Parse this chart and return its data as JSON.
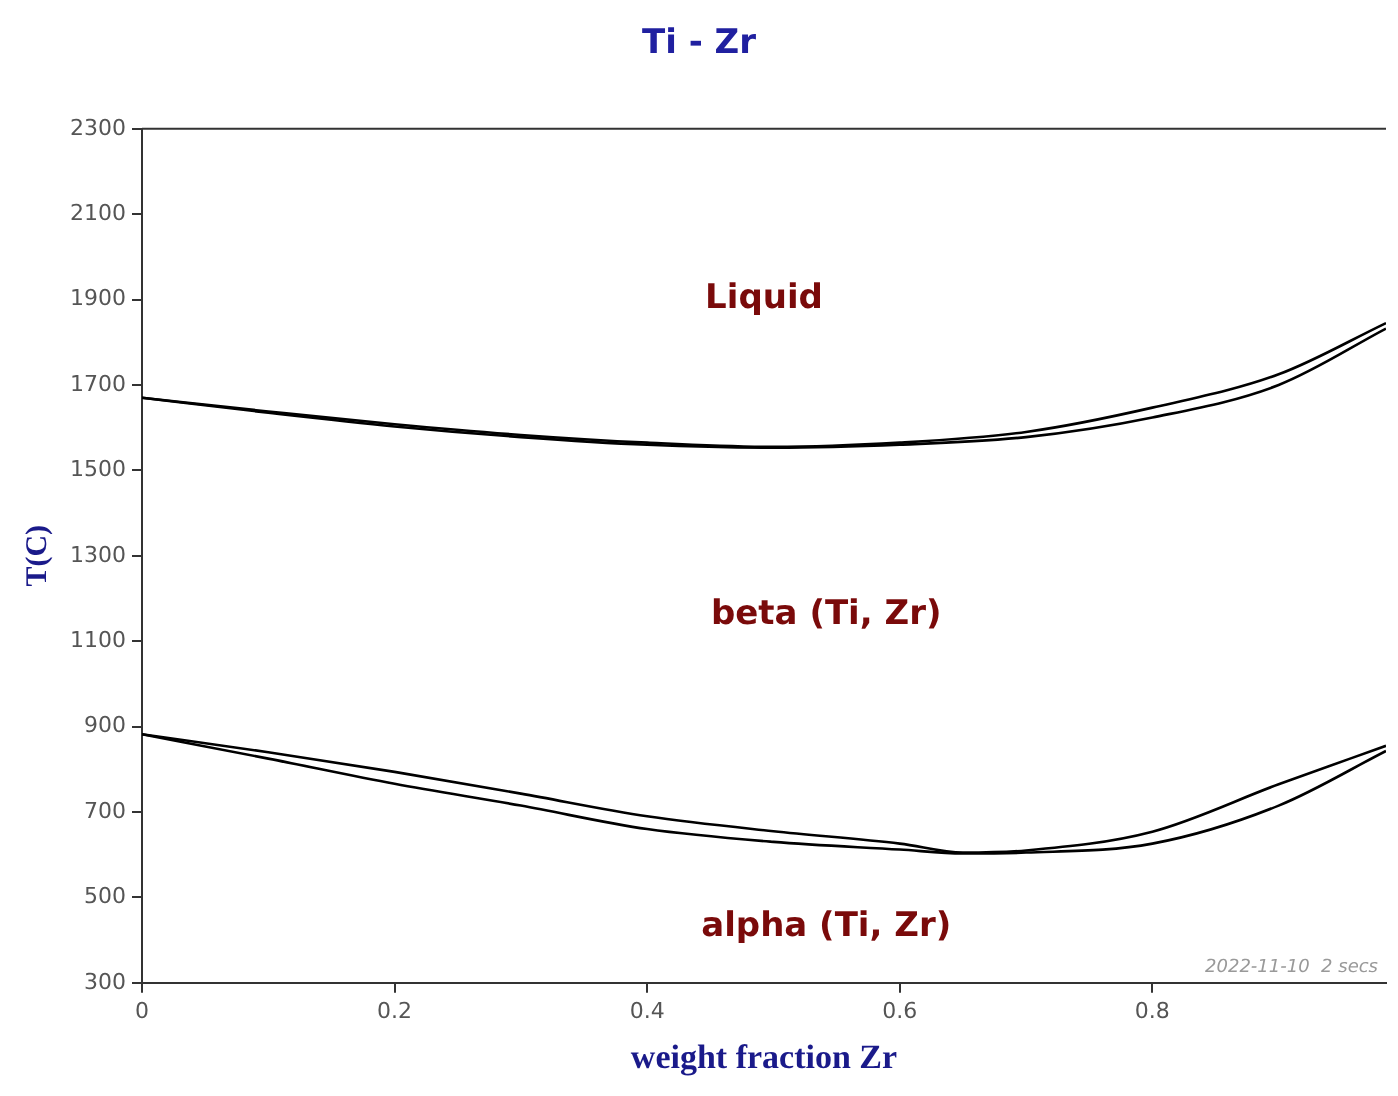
{
  "chart_data": {
    "type": "line",
    "title": "Ti - Zr",
    "xlabel": "weight fraction Zr",
    "ylabel": "T(C)",
    "x": [
      0,
      0.1,
      0.2,
      0.3,
      0.4,
      0.5,
      0.6,
      0.7,
      0.8,
      0.9,
      0.985
    ],
    "series": [
      {
        "color": "#000000",
        "values": [
          1670,
          1638,
          1608,
          1583,
          1565,
          1555,
          1565,
          1590,
          1647,
          1725,
          1845
        ]
      },
      {
        "color": "#000000",
        "values": [
          1670,
          1635,
          1603,
          1578,
          1560,
          1553,
          1560,
          1578,
          1624,
          1700,
          1832
        ]
      },
      {
        "color": "#000000",
        "x": [
          0,
          0.1,
          0.2,
          0.3,
          0.4,
          0.5,
          0.6,
          0.65,
          0.7,
          0.8,
          0.9,
          0.985
        ],
        "values": [
          882,
          840,
          794,
          743,
          690,
          655,
          626,
          605,
          610,
          654,
          765,
          855
        ]
      },
      {
        "color": "#000000",
        "x": [
          0,
          0.1,
          0.2,
          0.3,
          0.4,
          0.5,
          0.6,
          0.65,
          0.7,
          0.8,
          0.9,
          0.985
        ],
        "values": [
          882,
          825,
          766,
          715,
          660,
          630,
          612,
          603,
          605,
          626,
          715,
          843
        ]
      }
    ],
    "xlim": [
      0,
      0.985
    ],
    "xticks": [
      0,
      0.2,
      0.4,
      0.6,
      0.8
    ],
    "ylim": [
      300,
      2300
    ],
    "yticks": [
      300,
      500,
      700,
      900,
      1100,
      1300,
      1500,
      1700,
      1900,
      2100,
      2300
    ],
    "grid": false,
    "legend": false,
    "marker": "none",
    "line_style": "solid",
    "annotations": [
      "Liquid",
      "beta (Ti, Zr)",
      "alpha (Ti, Zr)",
      "2022-11-10  2 secs"
    ]
  }
}
